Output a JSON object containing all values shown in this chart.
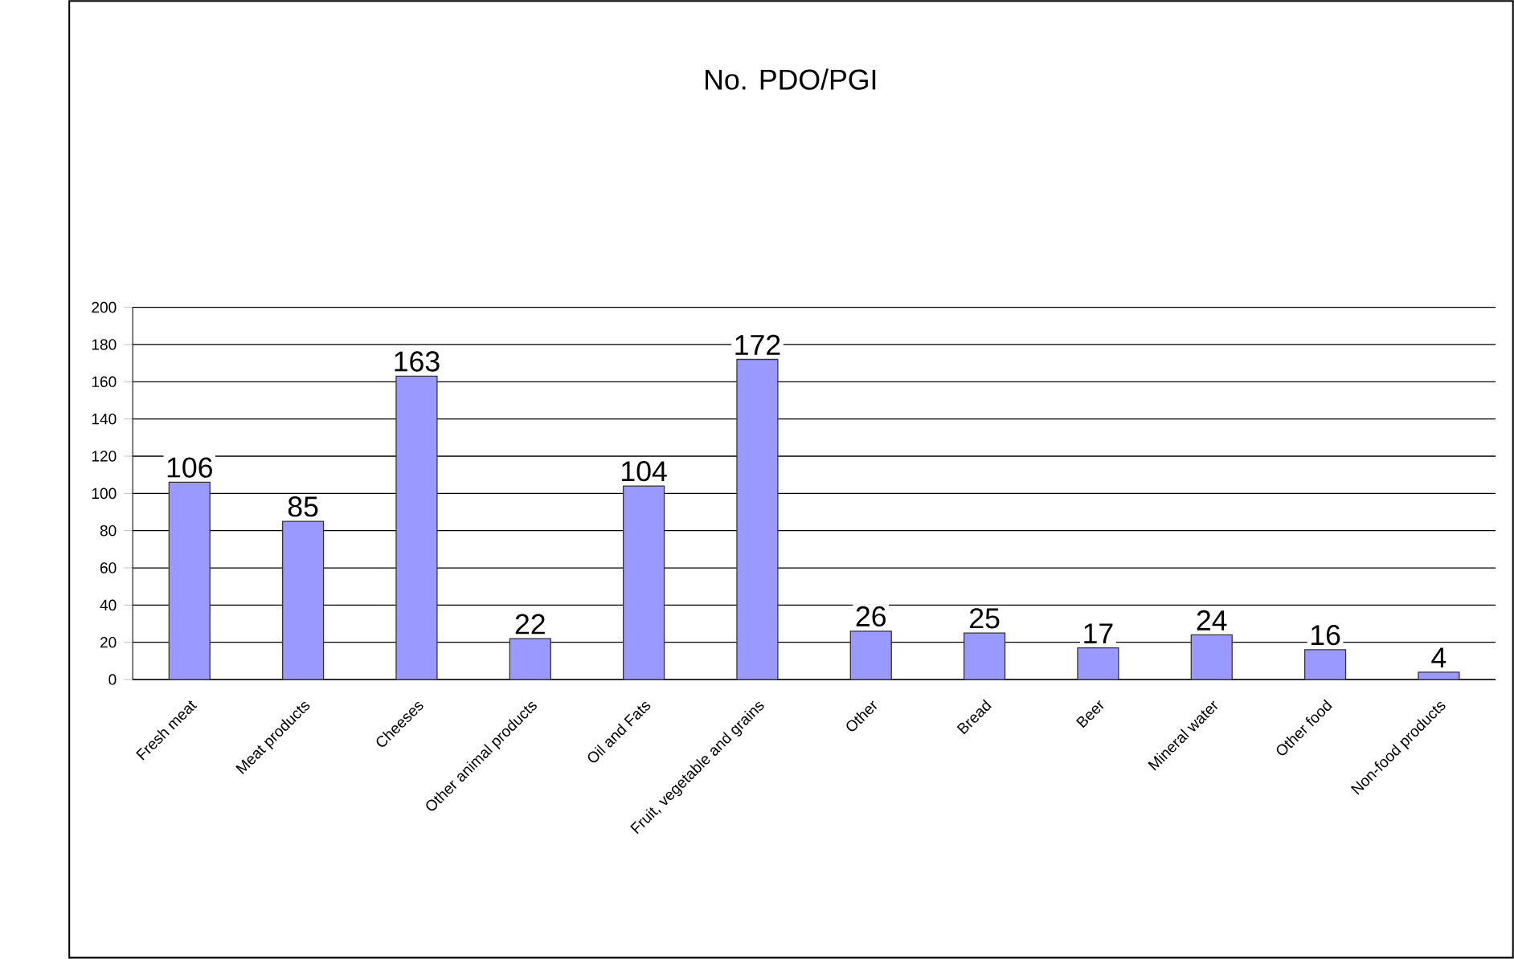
{
  "chart_data": {
    "type": "bar",
    "title": "No. PDO/PGI",
    "categories": [
      "Fresh meat",
      "Meat products",
      "Cheeses",
      "Other animal products",
      "Oil and Fats",
      "Fruit, vegetable and grains",
      "Other",
      "Bread",
      "Beer",
      "Mineral water",
      "Other food",
      "Non-food products"
    ],
    "values": [
      106,
      85,
      163,
      22,
      104,
      172,
      26,
      25,
      17,
      24,
      16,
      4
    ],
    "color": "#9999ff",
    "ylim": [
      0,
      200
    ],
    "yticks": [
      0,
      20,
      40,
      60,
      80,
      100,
      120,
      140,
      160,
      180,
      200
    ],
    "grid": "y",
    "data_labels": true
  }
}
